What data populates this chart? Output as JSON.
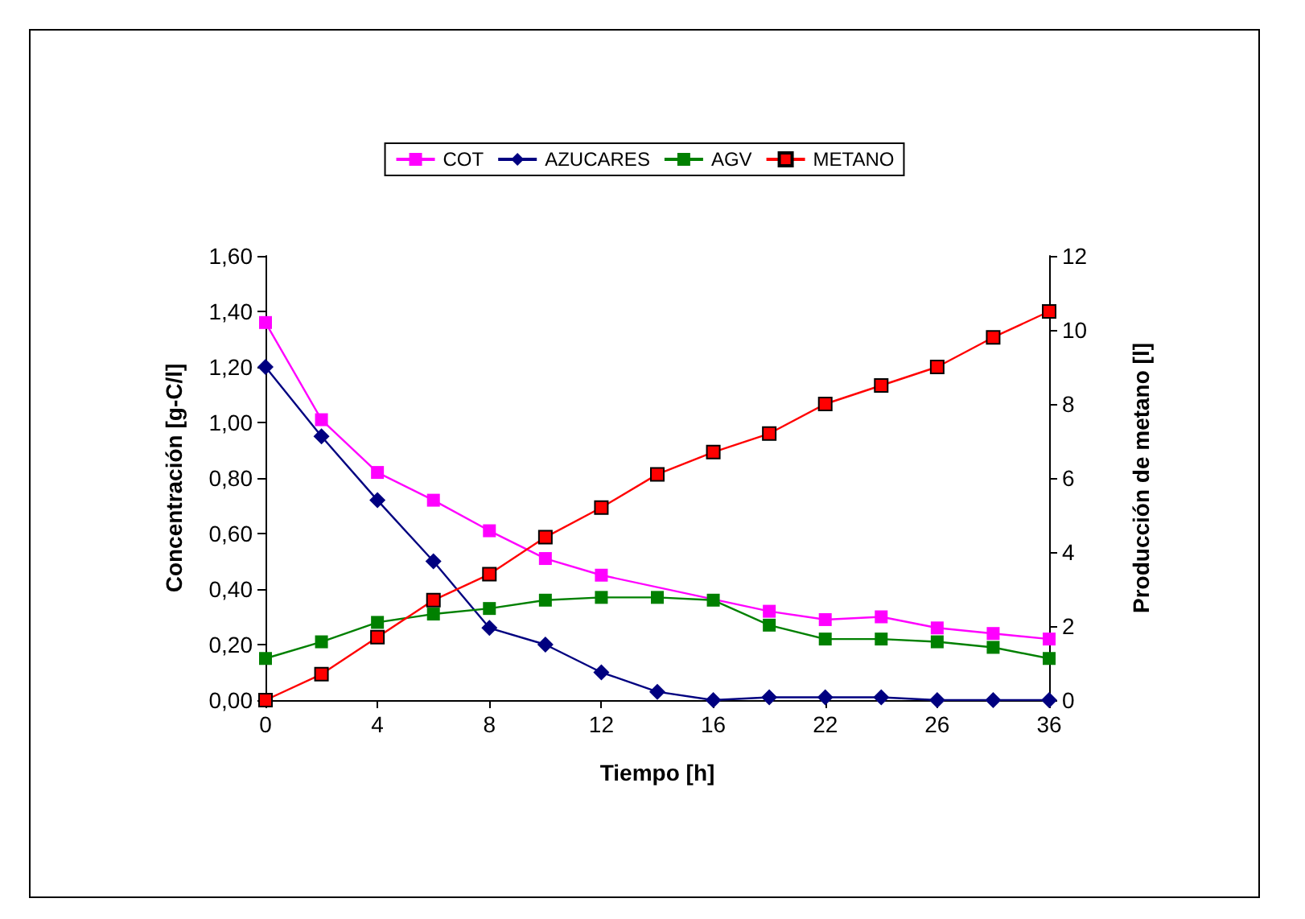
{
  "chart_data": {
    "type": "line",
    "xlabel": "Tiempo [h]",
    "ylabel": "Concentración [g-C/l]",
    "y2label": "Producción de metano [l]",
    "categories": [
      "0",
      null,
      "4",
      null,
      "8",
      null,
      "12",
      null,
      "16",
      null,
      "22",
      null,
      "26",
      null,
      "36"
    ],
    "series": [
      {
        "name": "COT",
        "color": "#ff00ff",
        "marker": "square",
        "values": [
          1.36,
          1.01,
          0.82,
          0.72,
          0.61,
          0.51,
          0.45,
          null,
          null,
          0.32,
          0.29,
          0.3,
          0.26,
          0.24,
          0.22
        ]
      },
      {
        "name": "AZUCARES",
        "color": "#000080",
        "marker": "diamond",
        "values": [
          1.2,
          0.95,
          0.72,
          0.5,
          0.26,
          0.2,
          0.1,
          0.03,
          0.0,
          0.01,
          0.01,
          0.01,
          0.0,
          0.0,
          0.0
        ]
      },
      {
        "name": "AGV",
        "color": "#008000",
        "marker": "square",
        "values": [
          0.15,
          0.21,
          0.28,
          0.31,
          0.33,
          0.36,
          0.37,
          0.37,
          0.36,
          0.27,
          0.22,
          0.22,
          0.21,
          0.19,
          0.15
        ]
      },
      {
        "name": "METANO",
        "color": "#ff0000",
        "marker": "square",
        "axis": "y2",
        "values": [
          0,
          0.7,
          1.7,
          2.7,
          3.4,
          4.4,
          5.2,
          6.1,
          6.7,
          7.2,
          8.0,
          8.5,
          9.0,
          9.8,
          10.5
        ]
      }
    ],
    "ylim": [
      0,
      1.6
    ],
    "yticks": [
      {
        "value": 0,
        "label": "0,00"
      },
      {
        "value": 0.2,
        "label": "0,20"
      },
      {
        "value": 0.4,
        "label": "0,40"
      },
      {
        "value": 0.6,
        "label": "0,60"
      },
      {
        "value": 0.8,
        "label": "0,80"
      },
      {
        "value": 1.0,
        "label": "1,00"
      },
      {
        "value": 1.2,
        "label": "1,20"
      },
      {
        "value": 1.4,
        "label": "1,40"
      },
      {
        "value": 1.6,
        "label": "1,60"
      }
    ],
    "y2lim": [
      0,
      12
    ],
    "y2ticks": [
      0,
      2,
      4,
      6,
      8,
      10,
      12
    ],
    "legend": "top",
    "grid": false,
    "line_style": "solid"
  }
}
